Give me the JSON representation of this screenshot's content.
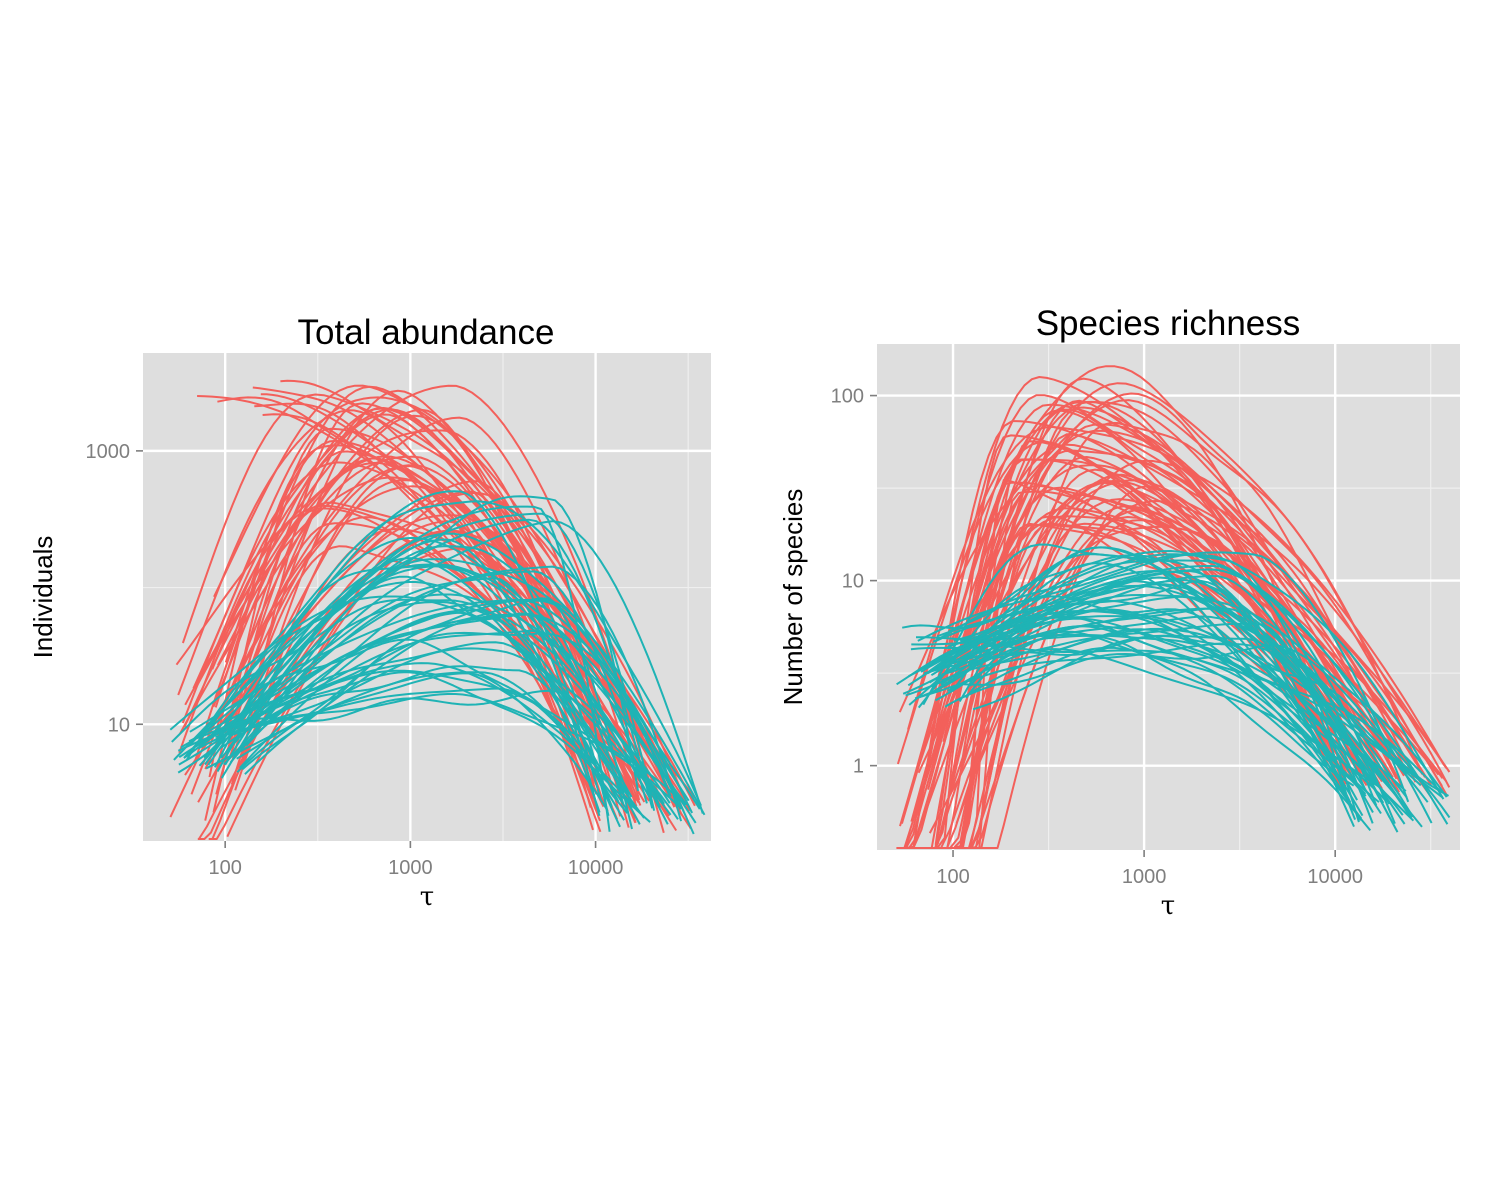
{
  "colors": {
    "panel_background": "#dedede",
    "grid_major": "#ffffff",
    "grid_minor": "#efefef",
    "tick_text": "#7f7f7f",
    "tick_mark": "#7f7f7f",
    "group_a": "#f3605b",
    "group_b": "#1fb3b5"
  },
  "chart_data": [
    {
      "type": "line",
      "title": "Total abundance",
      "xlabel": "τ",
      "ylabel": "Individuals",
      "xscale": "log10",
      "yscale": "log10",
      "xlim": [
        36,
        42000
      ],
      "ylim": [
        1.4,
        5200
      ],
      "x_ticks": [
        100,
        1000,
        10000
      ],
      "x_tick_labels": [
        "100",
        "1000",
        "10000"
      ],
      "y_ticks": [
        10,
        1000
      ],
      "y_tick_labels": [
        "10",
        "1000"
      ],
      "grid": true,
      "series": [
        {
          "group": "red",
          "count": 52,
          "x_range": [
            50,
            36000
          ],
          "peak_x_range": [
            300,
            2500
          ],
          "peak_y_range": [
            200,
            3000
          ],
          "extra_decreasing_from_x": [
            70,
            200
          ],
          "extra_decreasing_start_y": [
            1800,
            3800
          ],
          "end_y_range": [
            1.6,
            3.5
          ]
        },
        {
          "group": "cyan",
          "count": 48,
          "x_range": [
            50,
            40000
          ],
          "start_y_range": [
            4,
            9
          ],
          "peak_x_range": [
            900,
            6000
          ],
          "peak_y_range": [
            15,
            500
          ],
          "end_y_range": [
            1.7,
            3.0
          ]
        }
      ]
    },
    {
      "type": "line",
      "title": "Species richness",
      "xlabel": "τ",
      "ylabel": "Number of species",
      "xscale": "log10",
      "yscale": "log10",
      "xlim": [
        40,
        45000
      ],
      "ylim": [
        0.35,
        190
      ],
      "x_ticks": [
        100,
        1000,
        10000
      ],
      "x_tick_labels": [
        "100",
        "1000",
        "10000"
      ],
      "y_ticks": [
        1,
        10,
        100
      ],
      "y_tick_labels": [
        "1",
        "10",
        "100"
      ],
      "grid": true,
      "series": [
        {
          "group": "red",
          "count": 58,
          "x_range": [
            50,
            40000
          ],
          "peak_x_range": [
            180,
            1200
          ],
          "peak_y_range": [
            20,
            140
          ],
          "end_y_range": [
            0.7,
            1.1
          ]
        },
        {
          "group": "cyan",
          "count": 50,
          "x_range": [
            50,
            40000
          ],
          "start_y_range": [
            2,
            5
          ],
          "peak_x_range": [
            300,
            4500
          ],
          "peak_y_range": [
            4,
            16
          ],
          "end_y_range": [
            0.45,
            0.8
          ]
        }
      ]
    }
  ]
}
